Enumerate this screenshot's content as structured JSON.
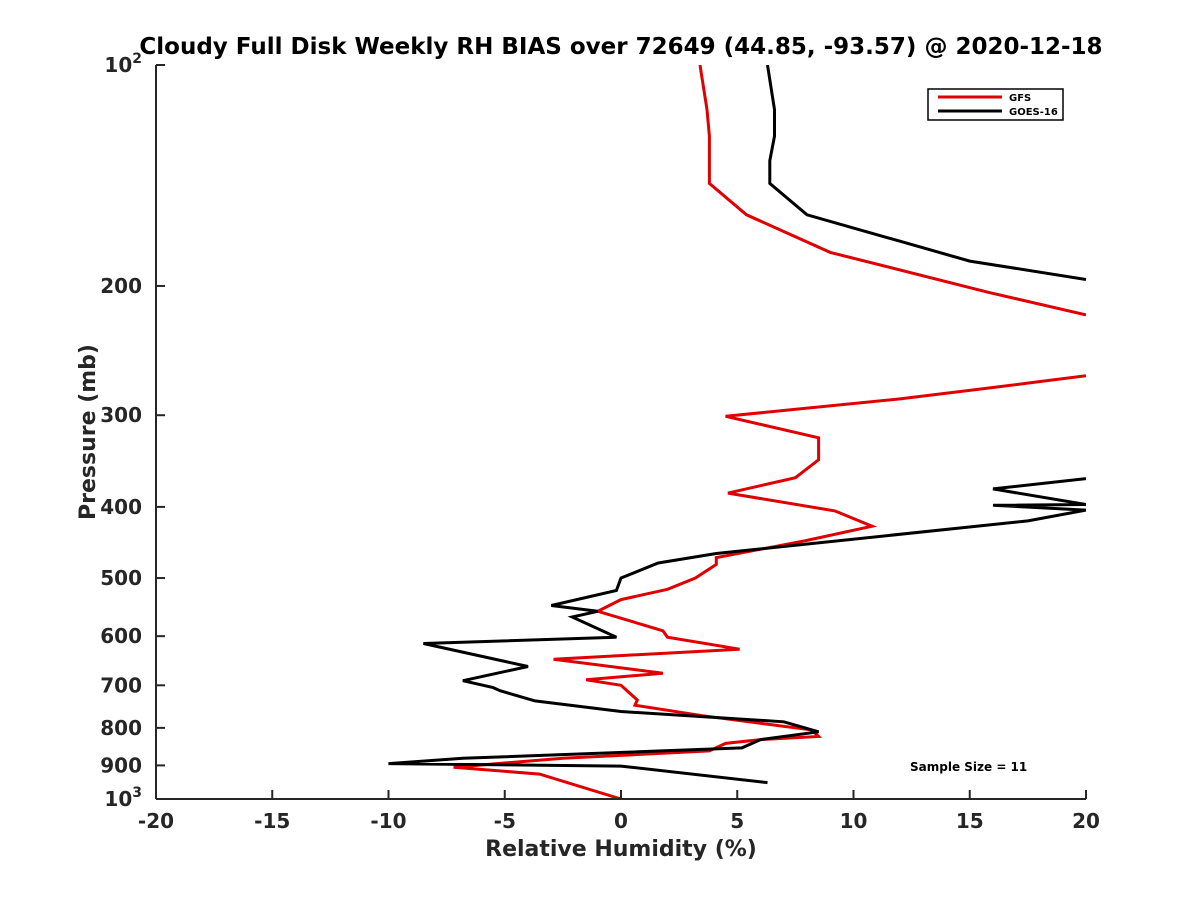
{
  "chart_data": {
    "type": "line",
    "title": "Cloudy Full Disk Weekly RH BIAS over 72649 (44.85, -93.57) @ 2020-12-18",
    "xlabel": "Relative Humidity (%)",
    "ylabel": "Pressure (mb)",
    "xlim": [
      -20,
      20
    ],
    "ylim": [
      100,
      1000
    ],
    "y_scale": "log",
    "y_reversed": true,
    "grid": false,
    "legend_position": "top-right",
    "x_ticks": [
      "-20",
      "-15",
      "-10",
      "-5",
      "0",
      "5",
      "10",
      "15",
      "20"
    ],
    "y_ticks": [
      {
        "value": 100,
        "base": "10",
        "exp": "2"
      },
      {
        "value": 200,
        "label": "200"
      },
      {
        "value": 300,
        "label": "300"
      },
      {
        "value": 400,
        "label": "400"
      },
      {
        "value": 500,
        "label": "500"
      },
      {
        "value": 600,
        "label": "600"
      },
      {
        "value": 700,
        "label": "700"
      },
      {
        "value": 800,
        "label": "800"
      },
      {
        "value": 900,
        "label": "900"
      },
      {
        "value": 1000,
        "base": "10",
        "exp": "3"
      }
    ],
    "annotation": "Sample Size = 11",
    "series": [
      {
        "name": "GFS",
        "color": "#e00000",
        "points": [
          [
            3.4,
            100
          ],
          [
            3.7,
            115
          ],
          [
            3.8,
            125
          ],
          [
            3.8,
            135
          ],
          [
            3.8,
            145
          ],
          [
            5.4,
            160
          ],
          [
            9.0,
            180
          ],
          [
            15.8,
            204
          ],
          [
            20.0,
            219
          ],
          null,
          [
            20.0,
            265
          ],
          [
            16.0,
            275
          ],
          [
            12.0,
            285
          ],
          [
            4.5,
            301
          ],
          [
            8.5,
            322
          ],
          [
            8.5,
            345
          ],
          [
            7.5,
            365
          ],
          [
            4.6,
            383
          ],
          [
            9.2,
            405
          ],
          [
            10.8,
            425
          ],
          [
            7.9,
            445
          ],
          [
            4.1,
            469
          ],
          [
            4.1,
            479
          ],
          [
            3.2,
            500
          ],
          [
            2.0,
            518
          ],
          [
            0.0,
            535
          ],
          [
            -1.0,
            555
          ],
          [
            1.8,
            590
          ],
          [
            2.0,
            602
          ],
          [
            5.1,
            625
          ],
          [
            -2.9,
            645
          ],
          [
            1.8,
            674
          ],
          [
            -1.5,
            688
          ],
          [
            0.0,
            700
          ],
          [
            0.7,
            733
          ],
          [
            0.6,
            745
          ],
          [
            3.5,
            770
          ],
          [
            8.2,
            805
          ],
          [
            8.5,
            822
          ],
          [
            6.0,
            830
          ],
          [
            4.5,
            840
          ],
          [
            3.8,
            860
          ],
          [
            -2.5,
            880
          ],
          [
            -7.2,
            905
          ],
          [
            -3.5,
            925
          ],
          [
            0.0,
            1000
          ]
        ]
      },
      {
        "name": "GOES-16",
        "color": "#000000",
        "points": [
          [
            6.3,
            100
          ],
          [
            6.6,
            115
          ],
          [
            6.6,
            125
          ],
          [
            6.4,
            135
          ],
          [
            6.4,
            145
          ],
          [
            8.0,
            160
          ],
          [
            15.0,
            185
          ],
          [
            20.0,
            196
          ],
          null,
          [
            20.0,
            366
          ],
          [
            16.0,
            378
          ],
          [
            20.0,
            397
          ],
          [
            16.0,
            398
          ],
          [
            20.0,
            404
          ],
          [
            17.5,
            418
          ],
          [
            4.1,
            463
          ],
          [
            1.6,
            477
          ],
          [
            0.0,
            500
          ],
          [
            -0.2,
            520
          ],
          [
            -3.0,
            545
          ],
          [
            -1.0,
            555
          ],
          [
            -2.1,
            565
          ],
          [
            -0.2,
            602
          ],
          [
            -8.5,
            614
          ],
          [
            -4.0,
            660
          ],
          [
            -6.8,
            690
          ],
          [
            -5.5,
            705
          ],
          [
            -5.2,
            712
          ],
          [
            -3.7,
            735
          ],
          [
            0.0,
            760
          ],
          [
            7.0,
            785
          ],
          [
            8.5,
            810
          ],
          [
            6.0,
            830
          ],
          [
            5.2,
            852
          ],
          [
            -6.8,
            880
          ],
          [
            -10.0,
            895
          ],
          [
            0.0,
            902
          ],
          [
            6.3,
            950
          ]
        ]
      }
    ]
  }
}
